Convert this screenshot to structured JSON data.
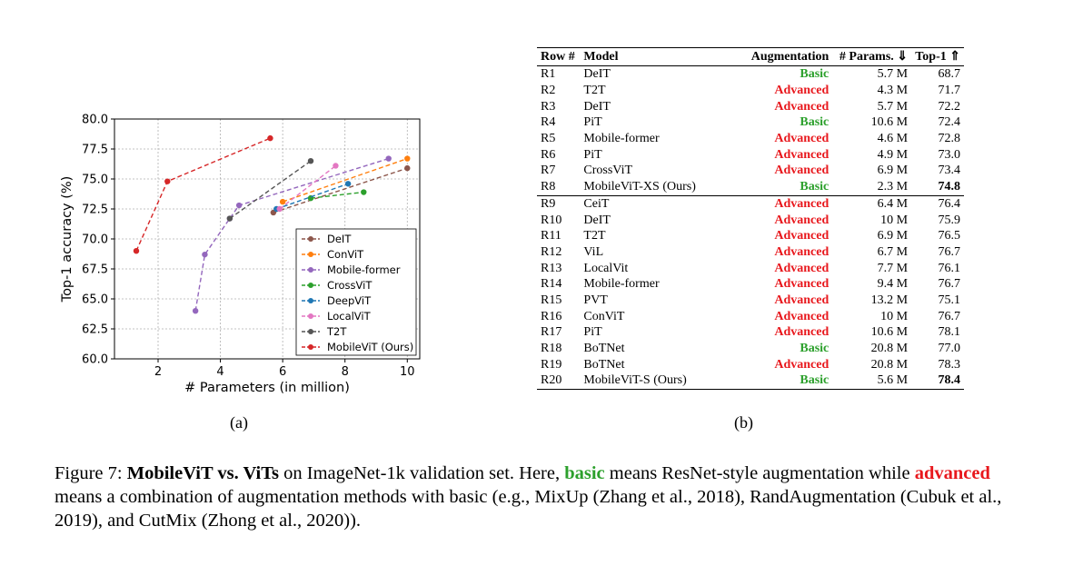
{
  "chart_data": {
    "type": "line",
    "xlabel": "# Parameters (in million)",
    "ylabel": "Top-1 accuracy (%)",
    "xlim": [
      0.6,
      10.4
    ],
    "ylim": [
      60.0,
      80.0
    ],
    "xticks": [
      2,
      4,
      6,
      8,
      10
    ],
    "yticks": [
      60.0,
      62.5,
      65.0,
      67.5,
      70.0,
      72.5,
      75.0,
      77.5,
      80.0
    ],
    "xtick_labels": [
      "2",
      "4",
      "6",
      "8",
      "10"
    ],
    "ytick_labels": [
      "60.0",
      "62.5",
      "65.0",
      "67.5",
      "70.0",
      "72.5",
      "75.0",
      "77.5",
      "80.0"
    ],
    "grid": true,
    "legend_position": "lower-right",
    "series": [
      {
        "name": "DeIT",
        "color": "#8c564b",
        "x": [
          5.7,
          10
        ],
        "y": [
          72.2,
          75.9
        ]
      },
      {
        "name": "ConViT",
        "color": "#ff7f0e",
        "x": [
          6.0,
          10
        ],
        "y": [
          73.1,
          76.7
        ]
      },
      {
        "name": "Mobile-former",
        "color": "#9467bd",
        "x": [
          3.2,
          3.5,
          4.3,
          4.6,
          9.4
        ],
        "y": [
          64.0,
          68.7,
          71.7,
          72.8,
          76.7
        ]
      },
      {
        "name": "CrossViT",
        "color": "#2ca02c",
        "x": [
          6.9,
          8.6
        ],
        "y": [
          73.4,
          73.9
        ]
      },
      {
        "name": "DeepViT",
        "color": "#1f77b4",
        "x": [
          5.8,
          8.1
        ],
        "y": [
          72.5,
          74.6
        ]
      },
      {
        "name": "LocalViT",
        "color": "#e377c2",
        "x": [
          5.9,
          7.7
        ],
        "y": [
          72.5,
          76.1
        ]
      },
      {
        "name": "T2T",
        "color": "#555555",
        "x": [
          4.3,
          6.9
        ],
        "y": [
          71.7,
          76.5
        ]
      },
      {
        "name": "MobileViT (Ours)",
        "color": "#d62728",
        "x": [
          1.3,
          2.3,
          5.6
        ],
        "y": [
          69.0,
          74.8,
          78.4
        ]
      }
    ]
  },
  "captions": {
    "a": "(a)",
    "b": "(b)"
  },
  "table": {
    "headers": {
      "row": "Row #",
      "model": "Model",
      "aug": "Augmentation",
      "params": "# Params.",
      "params_arrow": "⇓",
      "top1": "Top-1",
      "top1_arrow": "⇑"
    },
    "colors": {
      "basic": "#2ca02c",
      "advanced": "#e8181d"
    },
    "rows": [
      {
        "id": "R1",
        "model": "DeIT",
        "aug": "Basic",
        "params": "5.7 M",
        "top1": "68.7",
        "bold": false
      },
      {
        "id": "R2",
        "model": "T2T",
        "aug": "Advanced",
        "params": "4.3 M",
        "top1": "71.7",
        "bold": false
      },
      {
        "id": "R3",
        "model": "DeIT",
        "aug": "Advanced",
        "params": "5.7 M",
        "top1": "72.2",
        "bold": false
      },
      {
        "id": "R4",
        "model": "PiT",
        "aug": "Basic",
        "params": "10.6 M",
        "top1": "72.4",
        "bold": false
      },
      {
        "id": "R5",
        "model": "Mobile-former",
        "aug": "Advanced",
        "params": "4.6 M",
        "top1": "72.8",
        "bold": false
      },
      {
        "id": "R6",
        "model": "PiT",
        "aug": "Advanced",
        "params": "4.9 M",
        "top1": "73.0",
        "bold": false
      },
      {
        "id": "R7",
        "model": "CrossViT",
        "aug": "Advanced",
        "params": "6.9 M",
        "top1": "73.4",
        "bold": false
      },
      {
        "id": "R8",
        "model": "MobileViT-XS (Ours)",
        "aug": "Basic",
        "params": "2.3 M",
        "top1": "74.8",
        "bold": true
      },
      {
        "id": "R9",
        "model": "CeiT",
        "aug": "Advanced",
        "params": "6.4 M",
        "top1": "76.4",
        "bold": false
      },
      {
        "id": "R10",
        "model": "DeIT",
        "aug": "Advanced",
        "params": "10 M",
        "top1": "75.9",
        "bold": false
      },
      {
        "id": "R11",
        "model": "T2T",
        "aug": "Advanced",
        "params": "6.9 M",
        "top1": "76.5",
        "bold": false
      },
      {
        "id": "R12",
        "model": "ViL",
        "aug": "Advanced",
        "params": "6.7 M",
        "top1": "76.7",
        "bold": false
      },
      {
        "id": "R13",
        "model": "LocalVit",
        "aug": "Advanced",
        "params": "7.7 M",
        "top1": "76.1",
        "bold": false
      },
      {
        "id": "R14",
        "model": "Mobile-former",
        "aug": "Advanced",
        "params": "9.4 M",
        "top1": "76.7",
        "bold": false
      },
      {
        "id": "R15",
        "model": "PVT",
        "aug": "Advanced",
        "params": "13.2 M",
        "top1": "75.1",
        "bold": false
      },
      {
        "id": "R16",
        "model": "ConViT",
        "aug": "Advanced",
        "params": "10 M",
        "top1": "76.7",
        "bold": false
      },
      {
        "id": "R17",
        "model": "PiT",
        "aug": "Advanced",
        "params": "10.6 M",
        "top1": "78.1",
        "bold": false
      },
      {
        "id": "R18",
        "model": "BoTNet",
        "aug": "Basic",
        "params": "20.8 M",
        "top1": "77.0",
        "bold": false
      },
      {
        "id": "R19",
        "model": "BoTNet",
        "aug": "Advanced",
        "params": "20.8 M",
        "top1": "78.3",
        "bold": false
      },
      {
        "id": "R20",
        "model": "MobileViT-S (Ours)",
        "aug": "Basic",
        "params": "5.6 M",
        "top1": "78.4",
        "bold": true
      }
    ]
  },
  "figure_caption": {
    "prefix": "Figure 7: ",
    "bold_title": "MobileViT vs. ViTs",
    "part1": " on ImageNet-1k validation set. Here, ",
    "basic_word": "basic",
    "part2": " means ResNet-style augmentation while ",
    "advanced_word": "advanced",
    "part3": " means a combination of augmentation methods with basic (e.g., MixUp (Zhang et al., 2018), RandAugmentation (Cubuk et al., 2019), and CutMix (Zhong et al., 2020))."
  }
}
